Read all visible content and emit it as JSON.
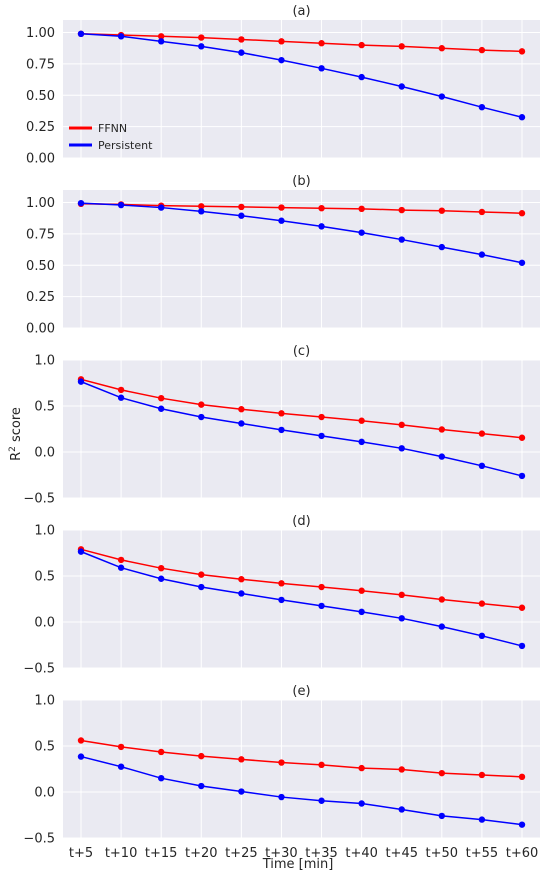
{
  "figure": {
    "xlabel": "Time [min]",
    "ylabel_main": "R",
    "ylabel_sup": "2",
    "ylabel_rest": " score"
  },
  "chart_data": [
    {
      "type": "line",
      "title": "(a)",
      "categories": [
        "t+5",
        "t+10",
        "t+15",
        "t+20",
        "t+25",
        "t+30",
        "t+35",
        "t+40",
        "t+45",
        "t+50",
        "t+55",
        "t+60"
      ],
      "ylim": [
        0,
        1.1
      ],
      "yticks": [
        0.0,
        0.25,
        0.5,
        0.75,
        1.0
      ],
      "ytick_labels": [
        "0.00",
        "0.25",
        "0.50",
        "0.75",
        "1.00"
      ],
      "grid": true,
      "legend": "lower-left",
      "series": [
        {
          "name": "FFNN",
          "color": "#ff0000",
          "values": [
            0.99,
            0.98,
            0.97,
            0.96,
            0.945,
            0.93,
            0.915,
            0.9,
            0.89,
            0.875,
            0.86,
            0.85
          ]
        },
        {
          "name": "Persistent",
          "color": "#0000ff",
          "values": [
            0.99,
            0.97,
            0.93,
            0.89,
            0.84,
            0.78,
            0.715,
            0.645,
            0.57,
            0.49,
            0.405,
            0.325
          ]
        }
      ]
    },
    {
      "type": "line",
      "title": "(b)",
      "categories": [
        "t+5",
        "t+10",
        "t+15",
        "t+20",
        "t+25",
        "t+30",
        "t+35",
        "t+40",
        "t+45",
        "t+50",
        "t+55",
        "t+60"
      ],
      "ylim": [
        0,
        1.1
      ],
      "yticks": [
        0.0,
        0.25,
        0.5,
        0.75,
        1.0
      ],
      "ytick_labels": [
        "0.00",
        "0.25",
        "0.50",
        "0.75",
        "1.00"
      ],
      "grid": true,
      "legend": "none",
      "series": [
        {
          "name": "FFNN",
          "color": "#ff0000",
          "values": [
            0.99,
            0.985,
            0.975,
            0.97,
            0.965,
            0.96,
            0.955,
            0.95,
            0.94,
            0.935,
            0.925,
            0.915
          ]
        },
        {
          "name": "Persistent",
          "color": "#0000ff",
          "values": [
            0.995,
            0.98,
            0.96,
            0.93,
            0.895,
            0.855,
            0.81,
            0.76,
            0.705,
            0.645,
            0.585,
            0.52
          ]
        }
      ]
    },
    {
      "type": "line",
      "title": "(c)",
      "categories": [
        "t+5",
        "t+10",
        "t+15",
        "t+20",
        "t+25",
        "t+30",
        "t+35",
        "t+40",
        "t+45",
        "t+50",
        "t+55",
        "t+60"
      ],
      "ylim": [
        -0.5,
        1.0
      ],
      "yticks": [
        -0.5,
        0.0,
        0.5,
        1.0
      ],
      "ytick_labels": [
        "−0.5",
        "0.0",
        "0.5",
        "1.0"
      ],
      "grid": true,
      "legend": "none",
      "series": [
        {
          "name": "FFNN",
          "color": "#ff0000",
          "values": [
            0.79,
            0.675,
            0.585,
            0.515,
            0.465,
            0.42,
            0.38,
            0.34,
            0.295,
            0.245,
            0.2,
            0.155
          ]
        },
        {
          "name": "Persistent",
          "color": "#0000ff",
          "values": [
            0.765,
            0.59,
            0.47,
            0.38,
            0.31,
            0.24,
            0.175,
            0.11,
            0.04,
            -0.05,
            -0.15,
            -0.26
          ]
        }
      ]
    },
    {
      "type": "line",
      "title": "(d)",
      "categories": [
        "t+5",
        "t+10",
        "t+15",
        "t+20",
        "t+25",
        "t+30",
        "t+35",
        "t+40",
        "t+45",
        "t+50",
        "t+55",
        "t+60"
      ],
      "ylim": [
        -0.5,
        1.0
      ],
      "yticks": [
        -0.5,
        0.0,
        0.5,
        1.0
      ],
      "ytick_labels": [
        "−0.5",
        "0.0",
        "0.5",
        "1.0"
      ],
      "grid": true,
      "legend": "none",
      "series": [
        {
          "name": "FFNN",
          "color": "#ff0000",
          "values": [
            0.79,
            0.675,
            0.585,
            0.515,
            0.465,
            0.42,
            0.38,
            0.34,
            0.295,
            0.245,
            0.2,
            0.155
          ]
        },
        {
          "name": "Persistent",
          "color": "#0000ff",
          "values": [
            0.765,
            0.59,
            0.47,
            0.38,
            0.31,
            0.24,
            0.175,
            0.11,
            0.04,
            -0.05,
            -0.15,
            -0.26
          ]
        }
      ]
    },
    {
      "type": "line",
      "title": "(e)",
      "categories": [
        "t+5",
        "t+10",
        "t+15",
        "t+20",
        "t+25",
        "t+30",
        "t+35",
        "t+40",
        "t+45",
        "t+50",
        "t+55",
        "t+60"
      ],
      "ylim": [
        -0.5,
        1.0
      ],
      "yticks": [
        -0.5,
        0.0,
        0.5,
        1.0
      ],
      "ytick_labels": [
        "−0.5",
        "0.0",
        "0.5",
        "1.0"
      ],
      "grid": true,
      "legend": "none",
      "series": [
        {
          "name": "FFNN",
          "color": "#ff0000",
          "values": [
            0.56,
            0.49,
            0.435,
            0.39,
            0.355,
            0.32,
            0.295,
            0.26,
            0.245,
            0.205,
            0.185,
            0.165
          ]
        },
        {
          "name": "Persistent",
          "color": "#0000ff",
          "values": [
            0.385,
            0.275,
            0.15,
            0.065,
            0.005,
            -0.055,
            -0.095,
            -0.125,
            -0.19,
            -0.26,
            -0.3,
            -0.355
          ]
        }
      ]
    }
  ]
}
